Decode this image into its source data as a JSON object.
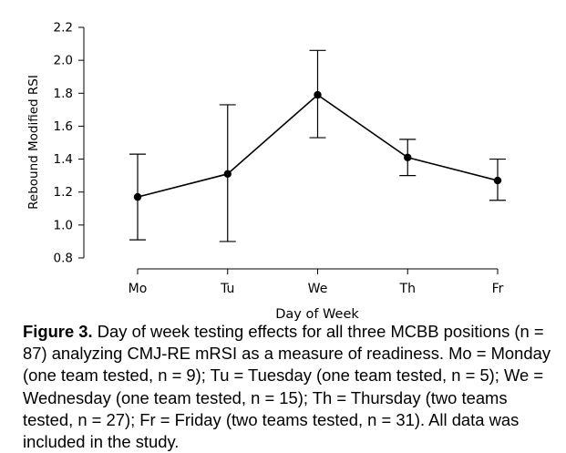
{
  "chart_data": {
    "type": "line",
    "xlabel": "Day of Week",
    "ylabel": "Rebound Modified RSI",
    "ylim": [
      0.8,
      2.2
    ],
    "yticks": [
      "0.8",
      "1.0",
      "1.2",
      "1.4",
      "1.6",
      "1.8",
      "2.0",
      "2.2"
    ],
    "categories": [
      "Mo",
      "Tu",
      "We",
      "Th",
      "Fr"
    ],
    "series": [
      {
        "values": [
          1.17,
          1.31,
          1.79,
          1.41,
          1.27
        ],
        "error_low": [
          0.91,
          0.9,
          1.53,
          1.3,
          1.15
        ],
        "error_high": [
          1.43,
          1.73,
          2.06,
          1.52,
          1.4
        ]
      }
    ],
    "grid": false,
    "color": "#000000"
  },
  "caption": {
    "label": "Figure 3.",
    "text": "Day of week testing effects for all three MCBB positions (n = 87) analyzing CMJ-RE mRSI as a measure of readiness. Mo = Monday (one team tested, n = 9); Tu = Tuesday (one team tested, n = 5); We = Wednesday (one team tested, n = 15); Th = Thursday (two teams tested, n = 27); Fr = Friday (two teams tested, n = 31). All data was included in the study."
  }
}
